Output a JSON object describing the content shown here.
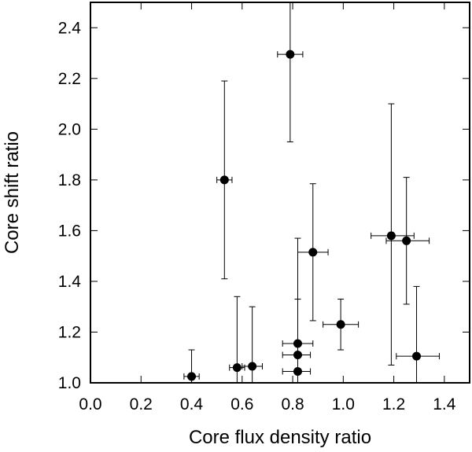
{
  "chart_data": {
    "type": "scatter",
    "title": "",
    "xlabel": "Core flux density ratio",
    "ylabel": "Core shift ratio",
    "xlim": [
      0.0,
      1.5
    ],
    "ylim": [
      1.0,
      2.5
    ],
    "xticks": [
      "0.0",
      "0.2",
      "0.4",
      "0.6",
      "0.8",
      "1.0",
      "1.2",
      "1.4"
    ],
    "yticks": [
      "1.0",
      "1.2",
      "1.4",
      "1.6",
      "1.8",
      "2.0",
      "2.2",
      "2.4"
    ],
    "grid": false,
    "legend": "none",
    "marker_color": "#000000",
    "points": [
      {
        "x": 0.4,
        "y": 1.025,
        "xerr": [
          0.37,
          0.43
        ],
        "yerr": [
          1.0,
          1.13
        ]
      },
      {
        "x": 0.53,
        "y": 1.8,
        "xerr": [
          0.5,
          0.56
        ],
        "yerr": [
          1.41,
          2.19
        ]
      },
      {
        "x": 0.58,
        "y": 1.06,
        "xerr": [
          0.55,
          0.61
        ],
        "yerr": [
          1.0,
          1.34
        ]
      },
      {
        "x": 0.64,
        "y": 1.065,
        "xerr": [
          0.6,
          0.68
        ],
        "yerr": [
          1.0,
          1.3
        ]
      },
      {
        "x": 0.79,
        "y": 2.295,
        "xerr": [
          0.74,
          0.84
        ],
        "yerr": [
          1.95,
          2.5
        ]
      },
      {
        "x": 0.82,
        "y": 1.155,
        "xerr": [
          0.76,
          0.88
        ],
        "yerr": [
          1.0,
          1.33
        ]
      },
      {
        "x": 0.82,
        "y": 1.11,
        "xerr": [
          0.76,
          0.87
        ],
        "yerr": [
          1.0,
          1.33
        ]
      },
      {
        "x": 0.82,
        "y": 1.045,
        "xerr": [
          0.76,
          0.87
        ],
        "yerr": [
          1.0,
          1.57
        ]
      },
      {
        "x": 0.88,
        "y": 1.515,
        "xerr": [
          0.82,
          0.94
        ],
        "yerr": [
          1.245,
          1.785
        ]
      },
      {
        "x": 0.99,
        "y": 1.23,
        "xerr": [
          0.92,
          1.06
        ],
        "yerr": [
          1.13,
          1.33
        ]
      },
      {
        "x": 1.19,
        "y": 1.58,
        "xerr": [
          1.11,
          1.28
        ],
        "yerr": [
          1.07,
          2.1
        ]
      },
      {
        "x": 1.25,
        "y": 1.56,
        "xerr": [
          1.17,
          1.34
        ],
        "yerr": [
          1.31,
          1.81
        ]
      },
      {
        "x": 1.29,
        "y": 1.105,
        "xerr": [
          1.21,
          1.38
        ],
        "yerr": [
          1.0,
          1.38
        ]
      }
    ]
  }
}
